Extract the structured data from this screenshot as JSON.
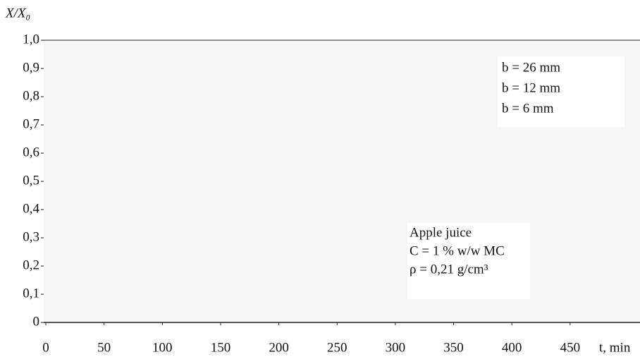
{
  "chart_data": {
    "type": "line",
    "ylabel": "X/X₀",
    "xlabel": "t, min",
    "series": [
      {
        "name": "b = 26 mm"
      },
      {
        "name": "b = 12 mm"
      },
      {
        "name": "b = 6 mm"
      }
    ],
    "annotations": [
      "Apple juice",
      "C = 1 % w/w MC",
      "ρ = 0,21 g/cm³"
    ],
    "xlim": [
      0,
      510
    ],
    "xticks": [
      0,
      50,
      100,
      150,
      200,
      250,
      300,
      350,
      400,
      450
    ],
    "ylim": [
      0,
      1
    ],
    "yticks": [
      0,
      {
        "value": 0.1,
        "label": "0,1"
      },
      {
        "value": 0.2,
        "label": "0,2"
      },
      {
        "value": 0.3,
        "label": "0,3"
      },
      {
        "value": 0.4,
        "label": "0,4"
      },
      {
        "value": 0.5,
        "label": "0,5"
      },
      {
        "value": 0.6,
        "label": "0,6"
      },
      {
        "value": 0.7,
        "label": "0,7"
      },
      {
        "value": 0.8,
        "label": "0,8"
      },
      {
        "value": 0.9,
        "label": "0,9"
      },
      {
        "value": 1.0,
        "label": "1,0"
      }
    ]
  }
}
